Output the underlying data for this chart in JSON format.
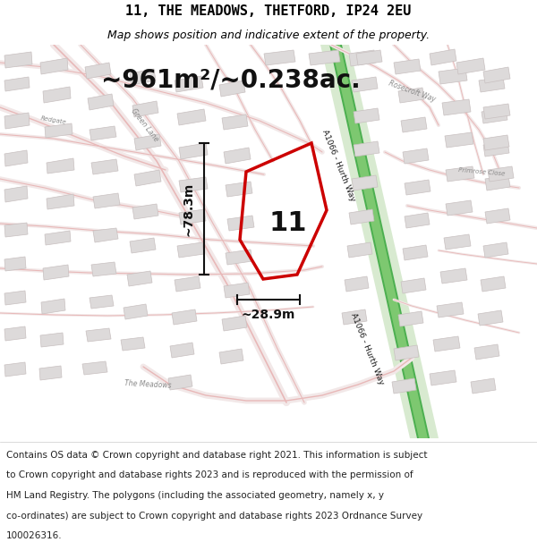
{
  "title": "11, THE MEADOWS, THETFORD, IP24 2EU",
  "subtitle": "Map shows position and indicative extent of the property.",
  "area_text": "~961m²/~0.238ac.",
  "width_label": "~28.9m",
  "height_label": "~78.3m",
  "property_number": "11",
  "footer_lines": [
    "Contains OS data © Crown copyright and database right 2021. This information is subject",
    "to Crown copyright and database rights 2023 and is reproduced with the permission of",
    "HM Land Registry. The polygons (including the associated geometry, namely x, y",
    "co-ordinates) are subject to Crown copyright and database rights 2023 Ordnance Survey",
    "100026316."
  ],
  "map_bg": "#f7f4f4",
  "road_fill": "#f2e8e8",
  "road_edge": "#e8b8b8",
  "building_fc": "#dddada",
  "building_ec": "#c8c0c0",
  "property_color": "#cc0000",
  "green_halo": "#d8ead0",
  "green_line": "#4caf50",
  "green_label": "#2a7a2a",
  "white_bg": "#ffffff",
  "dim_color": "#111111",
  "road_label_color": "#888888",
  "title_fontsize": 11,
  "subtitle_fontsize": 9,
  "area_fontsize": 20,
  "label_fontsize": 10,
  "footer_fontsize": 7.5,
  "prop_number_fontsize": 22,
  "road_label_fs": 5.5,
  "green_label_fs": 6.5
}
